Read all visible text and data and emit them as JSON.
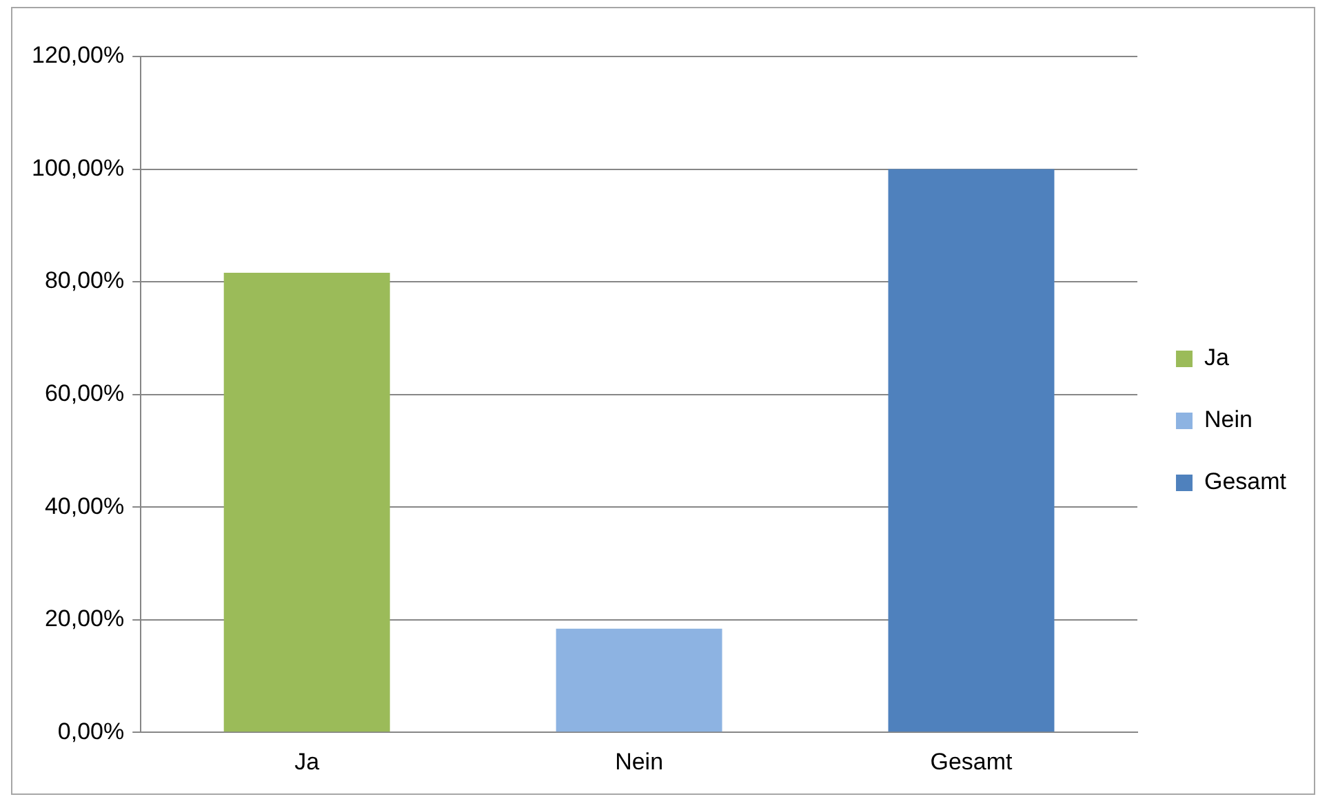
{
  "chart_data": {
    "type": "bar",
    "categories": [
      "Ja",
      "Nein",
      "Gesamt"
    ],
    "series": [
      {
        "name": "Ja",
        "color": "#9bbb59",
        "values": [
          81.6,
          null,
          null
        ]
      },
      {
        "name": "Nein",
        "color": "#8db3e2",
        "values": [
          null,
          18.4,
          null
        ]
      },
      {
        "name": "Gesamt",
        "color": "#4f81bd",
        "values": [
          null,
          null,
          100
        ]
      }
    ],
    "ylim": [
      0,
      120
    ],
    "yticks": [
      {
        "value": 0,
        "label": "0,00%"
      },
      {
        "value": 20,
        "label": "20,00%"
      },
      {
        "value": 40,
        "label": "40,00%"
      },
      {
        "value": 60,
        "label": "60,00%"
      },
      {
        "value": 80,
        "label": "80,00%"
      },
      {
        "value": 100,
        "label": "100,00%"
      },
      {
        "value": 120,
        "label": "120,00%"
      }
    ],
    "grid": "y",
    "legend": "right"
  }
}
